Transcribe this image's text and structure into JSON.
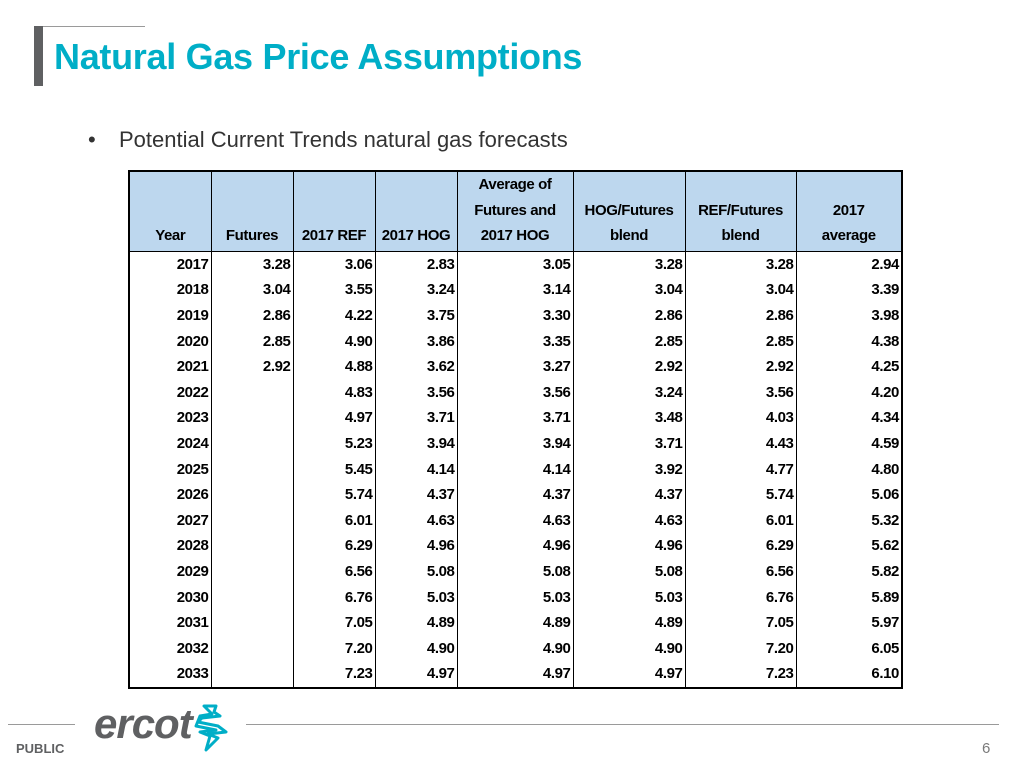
{
  "slide": {
    "title": "Natural Gas Price Assumptions",
    "bullet": "Potential Current Trends natural gas forecasts",
    "footer_label": "PUBLIC",
    "logo_text": "ercot",
    "page_number": "6",
    "accent_color": "#00aec7",
    "header_fill_color": "#bdd7ee"
  },
  "table": {
    "headers": [
      [
        "Year"
      ],
      [
        "Futures"
      ],
      [
        "2017 REF"
      ],
      [
        "2017 HOG"
      ],
      [
        "Average of",
        "Futures and",
        "2017 HOG"
      ],
      [
        "HOG/Futures",
        "blend"
      ],
      [
        "REF/Futures",
        "blend"
      ],
      [
        "2017",
        "average"
      ]
    ],
    "rows": [
      [
        "2017",
        "3.28",
        "3.06",
        "2.83",
        "3.05",
        "3.28",
        "3.28",
        "2.94"
      ],
      [
        "2018",
        "3.04",
        "3.55",
        "3.24",
        "3.14",
        "3.04",
        "3.04",
        "3.39"
      ],
      [
        "2019",
        "2.86",
        "4.22",
        "3.75",
        "3.30",
        "2.86",
        "2.86",
        "3.98"
      ],
      [
        "2020",
        "2.85",
        "4.90",
        "3.86",
        "3.35",
        "2.85",
        "2.85",
        "4.38"
      ],
      [
        "2021",
        "2.92",
        "4.88",
        "3.62",
        "3.27",
        "2.92",
        "2.92",
        "4.25"
      ],
      [
        "2022",
        "",
        "4.83",
        "3.56",
        "3.56",
        "3.24",
        "3.56",
        "4.20"
      ],
      [
        "2023",
        "",
        "4.97",
        "3.71",
        "3.71",
        "3.48",
        "4.03",
        "4.34"
      ],
      [
        "2024",
        "",
        "5.23",
        "3.94",
        "3.94",
        "3.71",
        "4.43",
        "4.59"
      ],
      [
        "2025",
        "",
        "5.45",
        "4.14",
        "4.14",
        "3.92",
        "4.77",
        "4.80"
      ],
      [
        "2026",
        "",
        "5.74",
        "4.37",
        "4.37",
        "4.37",
        "5.74",
        "5.06"
      ],
      [
        "2027",
        "",
        "6.01",
        "4.63",
        "4.63",
        "4.63",
        "6.01",
        "5.32"
      ],
      [
        "2028",
        "",
        "6.29",
        "4.96",
        "4.96",
        "4.96",
        "6.29",
        "5.62"
      ],
      [
        "2029",
        "",
        "6.56",
        "5.08",
        "5.08",
        "5.08",
        "6.56",
        "5.82"
      ],
      [
        "2030",
        "",
        "6.76",
        "5.03",
        "5.03",
        "5.03",
        "6.76",
        "5.89"
      ],
      [
        "2031",
        "",
        "7.05",
        "4.89",
        "4.89",
        "4.89",
        "7.05",
        "5.97"
      ],
      [
        "2032",
        "",
        "7.20",
        "4.90",
        "4.90",
        "4.90",
        "7.20",
        "6.05"
      ],
      [
        "2033",
        "",
        "7.23",
        "4.97",
        "4.97",
        "4.97",
        "7.23",
        "6.10"
      ]
    ]
  }
}
